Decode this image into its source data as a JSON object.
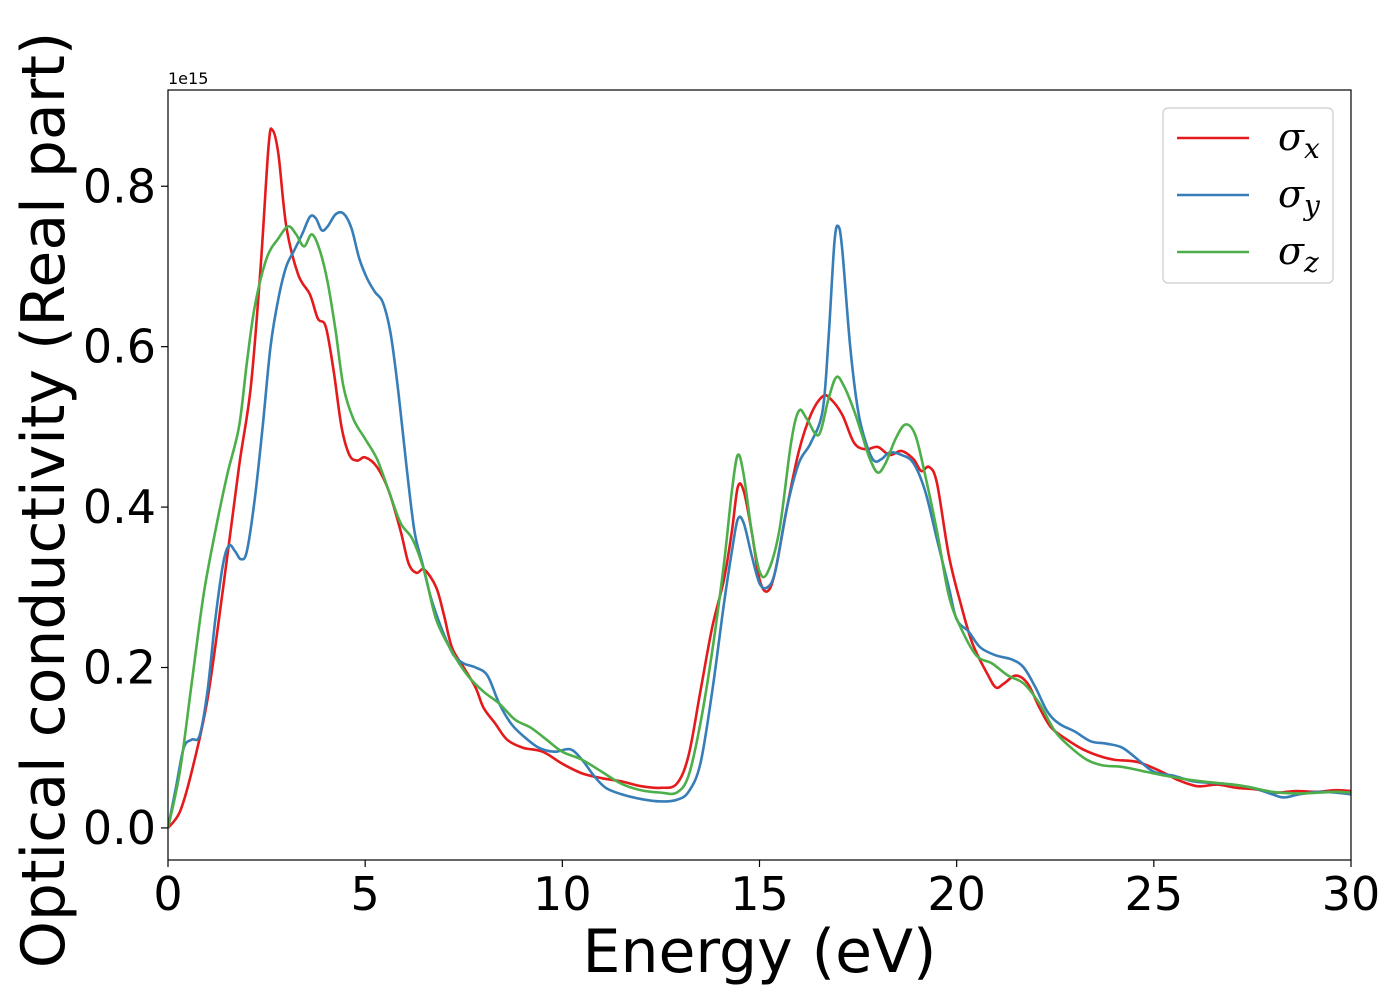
{
  "chart_data": {
    "type": "line",
    "xlabel": "Energy (eV)",
    "ylabel": "Optical conductivity (Real part)",
    "y_offset_label": "1e15",
    "xlim": [
      0,
      30
    ],
    "ylim": [
      -0.04,
      0.92
    ],
    "x_ticks": [
      0,
      5,
      10,
      15,
      20,
      25,
      30
    ],
    "x_tick_labels": [
      "0",
      "5",
      "10",
      "15",
      "20",
      "25",
      "30"
    ],
    "y_ticks": [
      0.0,
      0.2,
      0.4,
      0.6,
      0.8
    ],
    "y_tick_labels": [
      "0.0",
      "0.2",
      "0.4",
      "0.6",
      "0.8"
    ],
    "grid": false,
    "legend_position": "top-right",
    "series": [
      {
        "name": "σ",
        "name_sub": "x",
        "color": "#e41a1c",
        "points": [
          [
            0,
            0
          ],
          [
            0.3,
            0.02
          ],
          [
            0.6,
            0.07
          ],
          [
            1,
            0.16
          ],
          [
            1.4,
            0.3
          ],
          [
            1.8,
            0.45
          ],
          [
            2.1,
            0.55
          ],
          [
            2.35,
            0.7
          ],
          [
            2.55,
            0.85
          ],
          [
            2.65,
            0.87
          ],
          [
            2.8,
            0.84
          ],
          [
            3.0,
            0.75
          ],
          [
            3.3,
            0.69
          ],
          [
            3.6,
            0.665
          ],
          [
            3.8,
            0.635
          ],
          [
            4.0,
            0.625
          ],
          [
            4.2,
            0.57
          ],
          [
            4.4,
            0.5
          ],
          [
            4.6,
            0.465
          ],
          [
            4.8,
            0.458
          ],
          [
            5.0,
            0.462
          ],
          [
            5.3,
            0.45
          ],
          [
            5.6,
            0.42
          ],
          [
            5.9,
            0.37
          ],
          [
            6.1,
            0.33
          ],
          [
            6.3,
            0.318
          ],
          [
            6.5,
            0.322
          ],
          [
            6.8,
            0.3
          ],
          [
            7.0,
            0.265
          ],
          [
            7.2,
            0.225
          ],
          [
            7.5,
            0.2
          ],
          [
            7.8,
            0.175
          ],
          [
            8.0,
            0.15
          ],
          [
            8.3,
            0.13
          ],
          [
            8.6,
            0.11
          ],
          [
            9.0,
            0.1
          ],
          [
            9.5,
            0.095
          ],
          [
            10,
            0.08
          ],
          [
            10.5,
            0.068
          ],
          [
            11,
            0.062
          ],
          [
            11.5,
            0.058
          ],
          [
            12,
            0.052
          ],
          [
            12.5,
            0.05
          ],
          [
            12.9,
            0.055
          ],
          [
            13.2,
            0.09
          ],
          [
            13.5,
            0.17
          ],
          [
            13.8,
            0.25
          ],
          [
            14.1,
            0.31
          ],
          [
            14.3,
            0.37
          ],
          [
            14.45,
            0.425
          ],
          [
            14.6,
            0.42
          ],
          [
            14.8,
            0.37
          ],
          [
            15.0,
            0.31
          ],
          [
            15.2,
            0.295
          ],
          [
            15.4,
            0.32
          ],
          [
            15.7,
            0.4
          ],
          [
            16.0,
            0.47
          ],
          [
            16.3,
            0.515
          ],
          [
            16.6,
            0.538
          ],
          [
            16.8,
            0.535
          ],
          [
            17.1,
            0.515
          ],
          [
            17.4,
            0.48
          ],
          [
            17.7,
            0.472
          ],
          [
            18.0,
            0.475
          ],
          [
            18.3,
            0.465
          ],
          [
            18.6,
            0.47
          ],
          [
            18.9,
            0.46
          ],
          [
            19.1,
            0.445
          ],
          [
            19.3,
            0.45
          ],
          [
            19.5,
            0.43
          ],
          [
            19.8,
            0.34
          ],
          [
            20.1,
            0.28
          ],
          [
            20.4,
            0.23
          ],
          [
            20.8,
            0.19
          ],
          [
            21.0,
            0.175
          ],
          [
            21.2,
            0.18
          ],
          [
            21.5,
            0.19
          ],
          [
            21.8,
            0.18
          ],
          [
            22.1,
            0.15
          ],
          [
            22.4,
            0.125
          ],
          [
            22.8,
            0.11
          ],
          [
            23.2,
            0.098
          ],
          [
            23.6,
            0.09
          ],
          [
            24.0,
            0.085
          ],
          [
            24.6,
            0.082
          ],
          [
            25.2,
            0.07
          ],
          [
            25.6,
            0.06
          ],
          [
            26.1,
            0.052
          ],
          [
            26.6,
            0.054
          ],
          [
            27.1,
            0.05
          ],
          [
            27.6,
            0.048
          ],
          [
            28.1,
            0.044
          ],
          [
            28.6,
            0.046
          ],
          [
            29.1,
            0.045
          ],
          [
            29.6,
            0.047
          ],
          [
            30,
            0.046
          ]
        ]
      },
      {
        "name": "σ",
        "name_sub": "y",
        "color": "#377eb8",
        "points": [
          [
            0,
            0
          ],
          [
            0.2,
            0.05
          ],
          [
            0.4,
            0.1
          ],
          [
            0.6,
            0.11
          ],
          [
            0.8,
            0.115
          ],
          [
            1.0,
            0.17
          ],
          [
            1.2,
            0.26
          ],
          [
            1.4,
            0.33
          ],
          [
            1.55,
            0.352
          ],
          [
            1.7,
            0.345
          ],
          [
            1.85,
            0.335
          ],
          [
            2.0,
            0.345
          ],
          [
            2.2,
            0.41
          ],
          [
            2.4,
            0.5
          ],
          [
            2.6,
            0.6
          ],
          [
            2.8,
            0.66
          ],
          [
            3.0,
            0.7
          ],
          [
            3.2,
            0.72
          ],
          [
            3.4,
            0.74
          ],
          [
            3.6,
            0.762
          ],
          [
            3.75,
            0.76
          ],
          [
            3.9,
            0.745
          ],
          [
            4.05,
            0.75
          ],
          [
            4.25,
            0.765
          ],
          [
            4.45,
            0.766
          ],
          [
            4.65,
            0.748
          ],
          [
            4.85,
            0.71
          ],
          [
            5.05,
            0.685
          ],
          [
            5.25,
            0.668
          ],
          [
            5.45,
            0.655
          ],
          [
            5.65,
            0.615
          ],
          [
            5.85,
            0.54
          ],
          [
            6.05,
            0.45
          ],
          [
            6.25,
            0.37
          ],
          [
            6.45,
            0.33
          ],
          [
            6.65,
            0.29
          ],
          [
            6.85,
            0.26
          ],
          [
            7.05,
            0.235
          ],
          [
            7.25,
            0.215
          ],
          [
            7.5,
            0.205
          ],
          [
            7.8,
            0.2
          ],
          [
            8.1,
            0.19
          ],
          [
            8.4,
            0.155
          ],
          [
            8.7,
            0.13
          ],
          [
            9.0,
            0.115
          ],
          [
            9.4,
            0.1
          ],
          [
            9.8,
            0.095
          ],
          [
            10.2,
            0.098
          ],
          [
            10.5,
            0.085
          ],
          [
            10.8,
            0.065
          ],
          [
            11.1,
            0.05
          ],
          [
            11.5,
            0.042
          ],
          [
            12.0,
            0.036
          ],
          [
            12.5,
            0.033
          ],
          [
            12.9,
            0.035
          ],
          [
            13.2,
            0.045
          ],
          [
            13.5,
            0.08
          ],
          [
            13.8,
            0.17
          ],
          [
            14.1,
            0.28
          ],
          [
            14.3,
            0.345
          ],
          [
            14.45,
            0.385
          ],
          [
            14.6,
            0.38
          ],
          [
            14.8,
            0.34
          ],
          [
            15.0,
            0.305
          ],
          [
            15.2,
            0.3
          ],
          [
            15.4,
            0.32
          ],
          [
            15.7,
            0.4
          ],
          [
            16.0,
            0.455
          ],
          [
            16.3,
            0.48
          ],
          [
            16.6,
            0.52
          ],
          [
            16.75,
            0.61
          ],
          [
            16.9,
            0.73
          ],
          [
            17.0,
            0.75
          ],
          [
            17.1,
            0.72
          ],
          [
            17.3,
            0.6
          ],
          [
            17.5,
            0.52
          ],
          [
            17.7,
            0.48
          ],
          [
            17.9,
            0.458
          ],
          [
            18.1,
            0.46
          ],
          [
            18.3,
            0.468
          ],
          [
            18.6,
            0.465
          ],
          [
            18.9,
            0.455
          ],
          [
            19.2,
            0.42
          ],
          [
            19.5,
            0.36
          ],
          [
            19.8,
            0.3
          ],
          [
            20.0,
            0.26
          ],
          [
            20.3,
            0.245
          ],
          [
            20.6,
            0.225
          ],
          [
            21.0,
            0.215
          ],
          [
            21.4,
            0.21
          ],
          [
            21.7,
            0.2
          ],
          [
            22.0,
            0.175
          ],
          [
            22.3,
            0.145
          ],
          [
            22.6,
            0.13
          ],
          [
            23.0,
            0.12
          ],
          [
            23.4,
            0.108
          ],
          [
            23.8,
            0.105
          ],
          [
            24.2,
            0.1
          ],
          [
            24.6,
            0.085
          ],
          [
            25.0,
            0.07
          ],
          [
            25.5,
            0.065
          ],
          [
            26.0,
            0.058
          ],
          [
            26.5,
            0.056
          ],
          [
            27.0,
            0.054
          ],
          [
            27.5,
            0.05
          ],
          [
            28.0,
            0.042
          ],
          [
            28.3,
            0.038
          ],
          [
            28.7,
            0.042
          ],
          [
            29.2,
            0.045
          ],
          [
            29.6,
            0.044
          ],
          [
            30,
            0.042
          ]
        ]
      },
      {
        "name": "σ",
        "name_sub": "z",
        "color": "#4daf4a",
        "points": [
          [
            0,
            0
          ],
          [
            0.3,
            0.07
          ],
          [
            0.6,
            0.18
          ],
          [
            0.9,
            0.29
          ],
          [
            1.2,
            0.37
          ],
          [
            1.5,
            0.44
          ],
          [
            1.8,
            0.5
          ],
          [
            2.0,
            0.58
          ],
          [
            2.2,
            0.65
          ],
          [
            2.5,
            0.71
          ],
          [
            2.8,
            0.735
          ],
          [
            3.05,
            0.75
          ],
          [
            3.25,
            0.74
          ],
          [
            3.45,
            0.725
          ],
          [
            3.65,
            0.74
          ],
          [
            3.85,
            0.72
          ],
          [
            4.05,
            0.68
          ],
          [
            4.25,
            0.62
          ],
          [
            4.45,
            0.55
          ],
          [
            4.7,
            0.51
          ],
          [
            5.0,
            0.485
          ],
          [
            5.3,
            0.46
          ],
          [
            5.6,
            0.42
          ],
          [
            5.9,
            0.38
          ],
          [
            6.2,
            0.36
          ],
          [
            6.5,
            0.32
          ],
          [
            6.8,
            0.26
          ],
          [
            7.2,
            0.22
          ],
          [
            7.6,
            0.19
          ],
          [
            8.0,
            0.17
          ],
          [
            8.4,
            0.155
          ],
          [
            8.8,
            0.135
          ],
          [
            9.2,
            0.125
          ],
          [
            9.6,
            0.11
          ],
          [
            10,
            0.095
          ],
          [
            10.5,
            0.085
          ],
          [
            11,
            0.07
          ],
          [
            11.5,
            0.055
          ],
          [
            12,
            0.047
          ],
          [
            12.5,
            0.044
          ],
          [
            12.9,
            0.044
          ],
          [
            13.2,
            0.065
          ],
          [
            13.5,
            0.13
          ],
          [
            13.8,
            0.22
          ],
          [
            14.1,
            0.33
          ],
          [
            14.3,
            0.42
          ],
          [
            14.45,
            0.465
          ],
          [
            14.6,
            0.44
          ],
          [
            14.8,
            0.37
          ],
          [
            15.0,
            0.32
          ],
          [
            15.2,
            0.318
          ],
          [
            15.5,
            0.37
          ],
          [
            15.8,
            0.48
          ],
          [
            16.0,
            0.52
          ],
          [
            16.2,
            0.51
          ],
          [
            16.5,
            0.49
          ],
          [
            16.75,
            0.535
          ],
          [
            16.95,
            0.562
          ],
          [
            17.15,
            0.55
          ],
          [
            17.4,
            0.52
          ],
          [
            17.6,
            0.49
          ],
          [
            17.8,
            0.46
          ],
          [
            18.0,
            0.443
          ],
          [
            18.2,
            0.455
          ],
          [
            18.45,
            0.485
          ],
          [
            18.7,
            0.503
          ],
          [
            18.95,
            0.49
          ],
          [
            19.2,
            0.44
          ],
          [
            19.5,
            0.37
          ],
          [
            19.8,
            0.29
          ],
          [
            20.1,
            0.25
          ],
          [
            20.5,
            0.215
          ],
          [
            20.9,
            0.205
          ],
          [
            21.3,
            0.19
          ],
          [
            21.7,
            0.18
          ],
          [
            22.1,
            0.155
          ],
          [
            22.5,
            0.12
          ],
          [
            22.9,
            0.1
          ],
          [
            23.3,
            0.085
          ],
          [
            23.7,
            0.078
          ],
          [
            24.2,
            0.076
          ],
          [
            24.8,
            0.07
          ],
          [
            25.3,
            0.065
          ],
          [
            25.9,
            0.06
          ],
          [
            26.4,
            0.057
          ],
          [
            27.0,
            0.054
          ],
          [
            27.5,
            0.05
          ],
          [
            28.0,
            0.045
          ],
          [
            28.6,
            0.043
          ],
          [
            29.2,
            0.044
          ],
          [
            29.6,
            0.045
          ],
          [
            30,
            0.044
          ]
        ]
      }
    ]
  }
}
